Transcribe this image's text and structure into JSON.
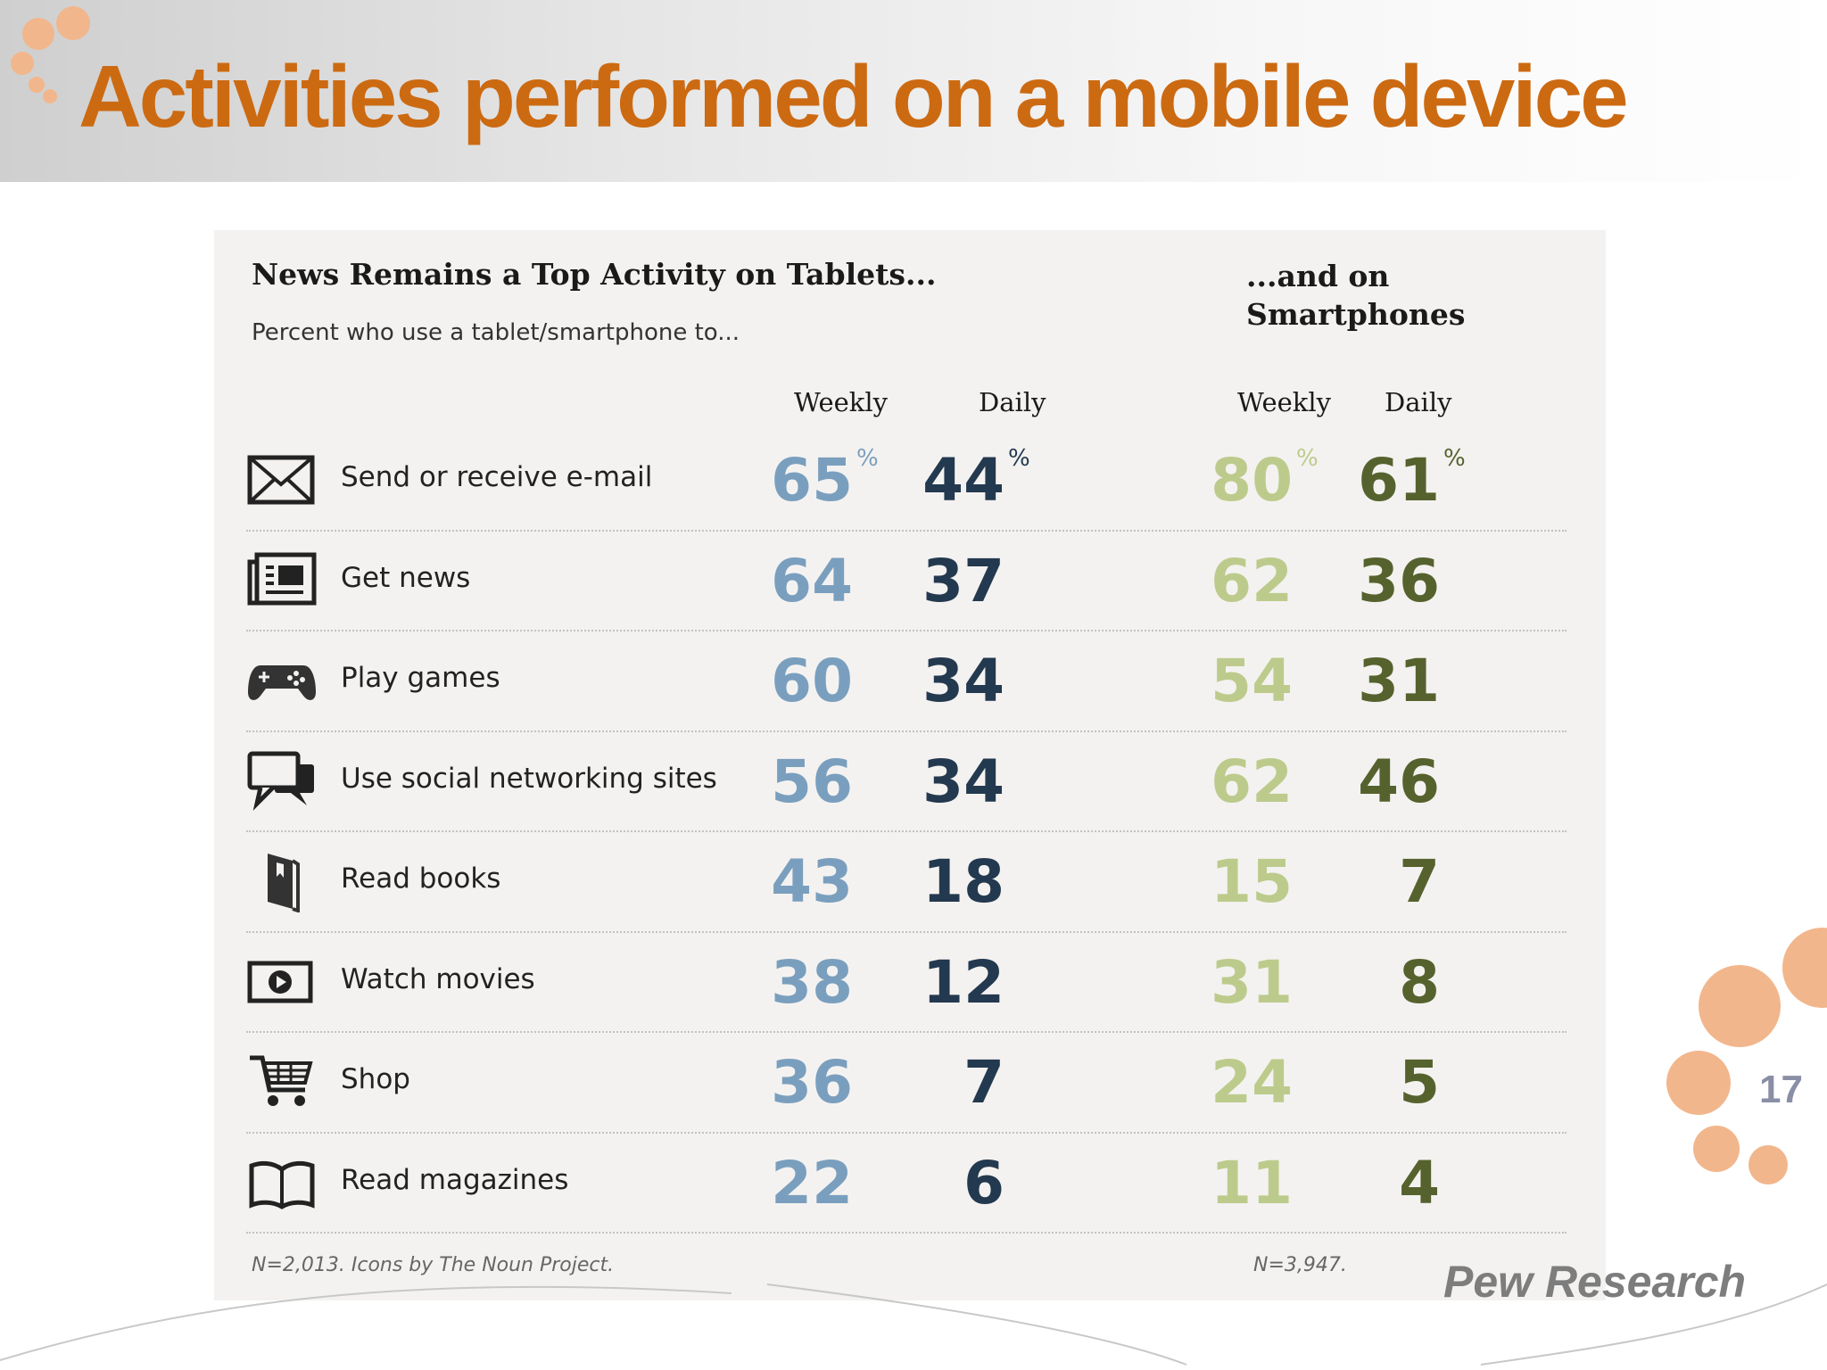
{
  "slide": {
    "title": "Activities performed on a mobile device",
    "page_number": "17",
    "source": "Pew Research"
  },
  "chart_data": {
    "type": "table",
    "title": "News Remains a Top Activity on Tablets...",
    "title_right": "...and on Smartphones",
    "subtitle": "Percent who use a tablet/smartphone to...",
    "column_headers": [
      "Weekly",
      "Daily",
      "Weekly",
      "Daily"
    ],
    "unit_symbol": "%",
    "rows": [
      {
        "label": "Send or receive e-mail",
        "icon": "envelope-icon",
        "tablet_weekly": 65,
        "tablet_daily": 44,
        "phone_weekly": 80,
        "phone_daily": 61
      },
      {
        "label": "Get news",
        "icon": "newspaper-icon",
        "tablet_weekly": 64,
        "tablet_daily": 37,
        "phone_weekly": 62,
        "phone_daily": 36
      },
      {
        "label": "Play games",
        "icon": "gamepad-icon",
        "tablet_weekly": 60,
        "tablet_daily": 34,
        "phone_weekly": 54,
        "phone_daily": 31
      },
      {
        "label": "Use social networking sites",
        "icon": "chat-bubbles-icon",
        "tablet_weekly": 56,
        "tablet_daily": 34,
        "phone_weekly": 62,
        "phone_daily": 46
      },
      {
        "label": "Read books",
        "icon": "book-icon",
        "tablet_weekly": 43,
        "tablet_daily": 18,
        "phone_weekly": 15,
        "phone_daily": 7
      },
      {
        "label": "Watch movies",
        "icon": "video-play-icon",
        "tablet_weekly": 38,
        "tablet_daily": 12,
        "phone_weekly": 31,
        "phone_daily": 8
      },
      {
        "label": "Shop",
        "icon": "shopping-cart-icon",
        "tablet_weekly": 36,
        "tablet_daily": 7,
        "phone_weekly": 24,
        "phone_daily": 5
      },
      {
        "label": "Read magazines",
        "icon": "open-magazine-icon",
        "tablet_weekly": 22,
        "tablet_daily": 6,
        "phone_weekly": 11,
        "phone_daily": 4
      }
    ],
    "notes": {
      "tablet": "N=2,013. Icons by The Noun Project.",
      "smartphone": "N=3,947."
    },
    "colors": {
      "tablet_weekly": "#7a9fbe",
      "tablet_daily": "#23394f",
      "phone_weekly": "#bccb8c",
      "phone_daily": "#55622e",
      "title_orange": "#cc6a12"
    }
  }
}
